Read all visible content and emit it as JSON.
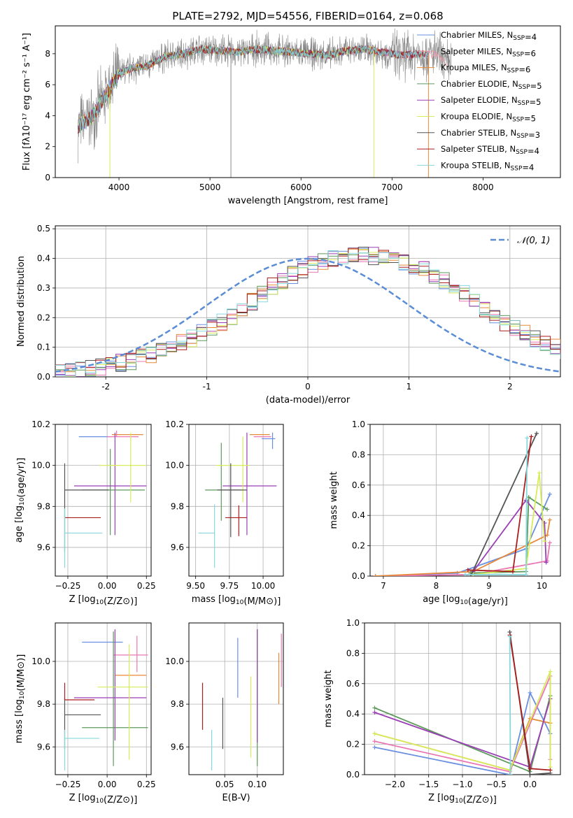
{
  "colors": [
    "#6a8fe0",
    "#e5a0ad",
    "#e8893a",
    "#5e9a5c",
    "#9b3fb5",
    "#d6ec5a",
    "#555555",
    "#aa1e1e",
    "#86d8dd",
    "#888888",
    "#ea77b4"
  ],
  "chart_data": [
    {
      "id": "spectrum",
      "type": "line",
      "title": "PLATE=2792, MJD=54556, FIBERID=0164, z=0.068",
      "xlabel": "wavelength [Angstrom, rest frame]",
      "ylabel": "Flux [fλ10⁻¹⁷ erg cm⁻² s⁻¹ A⁻¹]",
      "xlim": [
        3300,
        8850
      ],
      "ylim": [
        0,
        9.8
      ],
      "xticks": [
        4000,
        5000,
        6000,
        7000,
        8000
      ],
      "yticks": [
        0,
        2,
        4,
        6,
        8
      ],
      "grid": false,
      "legend_position": "upper-right",
      "legend": [
        "Chabrier MILES, N_SSP=4",
        "Salpeter MILES, N_SSP=6",
        "Kroupa MILES, N_SSP=6",
        "Chabrier ELODIE, N_SSP=5",
        "Salpeter ELODIE, N_SSP=5",
        "Kroupa ELODIE, N_SSP=5",
        "Chabrier STELIB, N_SSP=3",
        "Salpeter STELIB, N_SSP=4",
        "Kroupa STELIB, N_SSP=4"
      ],
      "legend_colors": [
        "#6a8fe0",
        "#e5a0ad",
        "#e8893a",
        "#5e9a5c",
        "#9b3fb5",
        "#d6ec5a",
        "#555555",
        "#aa1e1e",
        "#86d8dd"
      ],
      "continuum": {
        "x": [
          3550,
          3700,
          3850,
          4000,
          4150,
          4300,
          4500,
          4700,
          4900,
          5100,
          5300,
          5500,
          5700,
          5900,
          6100,
          6300,
          6500,
          6700,
          6900,
          7100,
          7300,
          7500,
          7600
        ],
        "y": [
          3.3,
          3.9,
          5.3,
          6.7,
          7.1,
          7.2,
          7.8,
          8.0,
          8.3,
          8.2,
          8.1,
          8.3,
          8.2,
          8.1,
          8.0,
          7.9,
          8.2,
          8.3,
          8.1,
          7.9,
          8.0,
          7.9,
          7.3
        ]
      },
      "observed_extent": [
        3550,
        7650
      ],
      "model_extents": [
        [
          3550,
          6800
        ],
        [
          3550,
          7600
        ],
        [
          3550,
          7400
        ],
        [
          3550,
          6800
        ],
        [
          3550,
          7400
        ],
        [
          3550,
          6800
        ],
        [
          3550,
          7400
        ],
        [
          3550,
          7400
        ],
        [
          3550,
          7400
        ]
      ],
      "drops": [
        {
          "x": 3900,
          "color": "#d6ec5a"
        },
        {
          "x": 6800,
          "color": "#d6ec5a"
        },
        {
          "x": 7400,
          "color": "#e8893a"
        },
        {
          "x": 5230,
          "color": "#888888"
        }
      ]
    },
    {
      "id": "residuals",
      "type": "step",
      "xlabel": "(data-model)/error",
      "ylabel": "Normed distribution",
      "xlim": [
        -2.5,
        2.5
      ],
      "ylim": [
        0,
        0.51
      ],
      "xticks": [
        -2,
        -1,
        0,
        1,
        2
      ],
      "yticks": [
        0.0,
        0.1,
        0.2,
        0.3,
        0.4,
        0.5
      ],
      "grid": true,
      "legend_position": "upper-right",
      "legend": [
        "𝒩(0, 1)"
      ],
      "bin_width": 0.1,
      "bin_start": -2.5,
      "base": [
        0.018,
        0.021,
        0.024,
        0.028,
        0.033,
        0.04,
        0.047,
        0.054,
        0.064,
        0.075,
        0.087,
        0.1,
        0.114,
        0.129,
        0.147,
        0.165,
        0.185,
        0.206,
        0.23,
        0.255,
        0.28,
        0.305,
        0.325,
        0.345,
        0.362,
        0.377,
        0.39,
        0.399,
        0.405,
        0.408,
        0.41,
        0.408,
        0.403,
        0.396,
        0.387,
        0.375,
        0.36,
        0.344,
        0.325,
        0.303,
        0.28,
        0.255,
        0.23,
        0.206,
        0.185,
        0.165,
        0.147,
        0.129,
        0.114,
        0.1,
        0.087,
        0.075,
        0.064,
        0.054,
        0.047,
        0.04,
        0.033,
        0.028,
        0.024,
        0.021
      ],
      "normal": {
        "mean": 0,
        "sigma": 1
      }
    },
    {
      "id": "age-vs-Z",
      "type": "errorbar",
      "xlabel": "Z [log10(Z/Z⊙)]",
      "ylabel": "age  [log10(age/yr)]",
      "xlim": [
        -0.33,
        0.28
      ],
      "ylim": [
        9.46,
        10.2
      ],
      "xticks": [
        -0.25,
        0.0,
        0.25
      ],
      "yticks": [
        9.6,
        9.8,
        10.0,
        10.2
      ],
      "grid": true,
      "points": [
        {
          "x": -0.08,
          "y": 10.14,
          "xerr": [
            0.1,
            0.1
          ],
          "yerr": [
            0.0,
            0.0
          ],
          "color": "#6a8fe0"
        },
        {
          "x": 0.06,
          "y": 10.14,
          "xerr": [
            0.06,
            0.14
          ],
          "yerr": [
            0.0,
            0.03
          ],
          "color": "#ea77b4"
        },
        {
          "x": 0.07,
          "y": 10.15,
          "xerr": [
            0.04,
            0.16
          ],
          "yerr": [
            0.0,
            0.0
          ],
          "color": "#e8893a"
        },
        {
          "x": 0.02,
          "y": 9.88,
          "xerr": [
            0.18,
            0.22
          ],
          "yerr": [
            0.22,
            0.2
          ],
          "color": "#5e9a5c"
        },
        {
          "x": 0.05,
          "y": 9.9,
          "xerr": [
            0.26,
            0.2
          ],
          "yerr": [
            0.24,
            0.26
          ],
          "color": "#9b3fb5"
        },
        {
          "x": 0.15,
          "y": 10.0,
          "xerr": [
            0.2,
            0.1
          ],
          "yerr": [
            0.18,
            0.16
          ],
          "color": "#d6ec5a"
        },
        {
          "x": -0.27,
          "y": 9.88,
          "xerr": [
            0.0,
            0.28
          ],
          "yerr": [
            0.3,
            0.13
          ],
          "color": "#555555"
        },
        {
          "x": -0.27,
          "y": 9.745,
          "xerr": [
            0.0,
            0.23
          ],
          "yerr": [
            0.0,
            0.0
          ],
          "color": "#aa1e1e"
        },
        {
          "x": -0.27,
          "y": 9.67,
          "xerr": [
            0.0,
            0.24
          ],
          "yerr": [
            0.17,
            0.12
          ],
          "color": "#86d8dd"
        }
      ]
    },
    {
      "id": "age-vs-mass",
      "type": "errorbar",
      "xlabel": "mass [log10(M/M⊙)]",
      "ylabel": "",
      "xlim": [
        9.45,
        10.15
      ],
      "ylim": [
        9.46,
        10.2
      ],
      "xticks": [
        9.5,
        9.75,
        10.0
      ],
      "yticks": [
        9.6,
        9.8,
        10.0,
        10.2
      ],
      "grid": true,
      "points": [
        {
          "x": 10.07,
          "y": 10.13,
          "xerr": [
            0.08,
            0.02
          ],
          "yerr": [
            0.05,
            0.03
          ],
          "color": "#6a8fe0"
        },
        {
          "x": 10.03,
          "y": 10.14,
          "xerr": [
            0.1,
            0.03
          ],
          "yerr": [
            0.0,
            0.0
          ],
          "color": "#ea77b4"
        },
        {
          "x": 9.95,
          "y": 10.15,
          "xerr": [
            0.05,
            0.1
          ],
          "yerr": [
            0.0,
            0.0
          ],
          "color": "#e8893a"
        },
        {
          "x": 9.69,
          "y": 9.88,
          "xerr": [
            0.12,
            0.15
          ],
          "yerr": [
            0.15,
            0.23
          ],
          "color": "#5e9a5c"
        },
        {
          "x": 9.88,
          "y": 9.9,
          "xerr": [
            0.18,
            0.22
          ],
          "yerr": [
            0.24,
            0.26
          ],
          "color": "#9b3fb5"
        },
        {
          "x": 9.85,
          "y": 10.0,
          "xerr": [
            0.2,
            0.05
          ],
          "yerr": [
            0.18,
            0.14
          ],
          "color": "#d6ec5a"
        },
        {
          "x": 9.76,
          "y": 9.88,
          "xerr": [
            0.1,
            0.12
          ],
          "yerr": [
            0.23,
            0.13
          ],
          "color": "#555555"
        },
        {
          "x": 9.82,
          "y": 9.745,
          "xerr": [
            0.1,
            0.06
          ],
          "yerr": [
            0.09,
            0.06
          ],
          "color": "#aa1e1e"
        },
        {
          "x": 9.64,
          "y": 9.67,
          "xerr": [
            0.12,
            0.0
          ],
          "yerr": [
            0.17,
            0.14
          ],
          "color": "#86d8dd"
        }
      ]
    },
    {
      "id": "weight-vs-age",
      "type": "line",
      "xlabel": "age  [log10(age/yr)]",
      "ylabel": "mass weight",
      "xlim": [
        6.75,
        10.35
      ],
      "ylim": [
        0,
        1
      ],
      "xticks": [
        7,
        8,
        9,
        10
      ],
      "yticks": [
        0.0,
        0.2,
        0.4,
        0.6,
        0.8,
        1.0
      ],
      "grid": true,
      "series": [
        {
          "color": "#6a8fe0",
          "x": [
            6.85,
            8.4,
            9.7,
            10.15
          ],
          "y": [
            0.0,
            0.02,
            0.18,
            0.54
          ]
        },
        {
          "color": "#ea77b4",
          "x": [
            6.85,
            8.7,
            10.1,
            10.15
          ],
          "y": [
            0.0,
            0.01,
            0.1,
            0.22
          ]
        },
        {
          "color": "#e8893a",
          "x": [
            6.85,
            8.7,
            10.1,
            10.15
          ],
          "y": [
            0.0,
            0.03,
            0.27,
            0.37
          ]
        },
        {
          "color": "#5e9a5c",
          "x": [
            8.65,
            9.7,
            9.75,
            10.1
          ],
          "y": [
            0.02,
            0.03,
            0.52,
            0.44
          ]
        },
        {
          "color": "#9b3fb5",
          "x": [
            8.7,
            9.7,
            10.05,
            10.08
          ],
          "y": [
            0.03,
            0.5,
            0.35,
            0.09
          ]
        },
        {
          "color": "#d6ec5a",
          "x": [
            8.7,
            9.7,
            9.95,
            10.05
          ],
          "y": [
            0.01,
            0.05,
            0.68,
            0.23
          ]
        },
        {
          "color": "#555555",
          "x": [
            8.65,
            9.9
          ],
          "y": [
            0.0,
            0.94
          ]
        },
        {
          "color": "#aa1e1e",
          "x": [
            8.6,
            9.45,
            9.8
          ],
          "y": [
            0.04,
            0.03,
            0.92
          ]
        },
        {
          "color": "#86d8dd",
          "x": [
            8.55,
            9.7,
            9.72
          ],
          "y": [
            0.01,
            0.01,
            0.91
          ]
        }
      ]
    },
    {
      "id": "mass-vs-Z",
      "type": "errorbar",
      "xlabel": "Z [log10(Z/Z⊙)]",
      "ylabel": "mass [log10(M/M⊙)]",
      "xlim": [
        -0.33,
        0.28
      ],
      "ylim": [
        9.47,
        10.18
      ],
      "xticks": [
        -0.25,
        0.0,
        0.25
      ],
      "yticks": [
        9.6,
        9.8,
        10.0
      ],
      "grid": true,
      "points": [
        {
          "x": -0.02,
          "y": 10.09,
          "xerr": [
            0.14,
            0.12
          ],
          "yerr": [
            0.0,
            0.0
          ],
          "color": "#6a8fe0"
        },
        {
          "x": 0.19,
          "y": 10.03,
          "xerr": [
            0.15,
            0.07
          ],
          "yerr": [
            0.08,
            0.09
          ],
          "color": "#ea77b4"
        },
        {
          "x": 0.15,
          "y": 9.935,
          "xerr": [
            0.1,
            0.1
          ],
          "yerr": [
            0.0,
            0.0
          ],
          "color": "#e8893a"
        },
        {
          "x": 0.04,
          "y": 9.69,
          "xerr": [
            0.2,
            0.22
          ],
          "yerr": [
            0.18,
            0.45
          ],
          "color": "#5e9a5c"
        },
        {
          "x": 0.05,
          "y": 9.83,
          "xerr": [
            0.26,
            0.2
          ],
          "yerr": [
            0.2,
            0.32
          ],
          "color": "#9b3fb5"
        },
        {
          "x": 0.14,
          "y": 9.88,
          "xerr": [
            0.2,
            0.12
          ],
          "yerr": [
            0.34,
            0.2
          ],
          "color": "#d6ec5a"
        },
        {
          "x": -0.27,
          "y": 9.75,
          "xerr": [
            0.0,
            0.23
          ],
          "yerr": [
            0.16,
            0.08
          ],
          "color": "#555555"
        },
        {
          "x": -0.27,
          "y": 9.82,
          "xerr": [
            0.0,
            0.19
          ],
          "yerr": [
            0.0,
            0.08
          ],
          "color": "#aa1e1e"
        },
        {
          "x": -0.27,
          "y": 9.64,
          "xerr": [
            0.0,
            0.22
          ],
          "yerr": [
            0.15,
            0.04
          ],
          "color": "#86d8dd"
        }
      ]
    },
    {
      "id": "mass-vs-EBV",
      "type": "errorbar",
      "xlabel": "E(B-V)",
      "ylabel": "",
      "xlim": [
        -0.005,
        0.14
      ],
      "ylim": [
        9.47,
        10.18
      ],
      "xticks": [
        0.05,
        0.1
      ],
      "yticks": [
        9.6,
        9.8,
        10.0
      ],
      "grid": true,
      "points": [
        {
          "x": 0.07,
          "y": 9.97,
          "xerr": [
            0.0,
            0.0
          ],
          "yerr": [
            0.14,
            0.14
          ],
          "color": "#6a8fe0"
        },
        {
          "x": 0.137,
          "y": 10.01,
          "xerr": [
            0.0,
            0.0
          ],
          "yerr": [
            0.13,
            0.12
          ],
          "color": "#ea77b4"
        },
        {
          "x": 0.133,
          "y": 9.92,
          "xerr": [
            0.0,
            0.0
          ],
          "yerr": [
            0.12,
            0.12
          ],
          "color": "#e8893a"
        },
        {
          "x": 0.1,
          "y": 9.8,
          "xerr": [
            0.0,
            0.0
          ],
          "yerr": [
            0.29,
            0.35
          ],
          "color": "#5e9a5c"
        },
        {
          "x": 0.1,
          "y": 9.88,
          "xerr": [
            0.0,
            0.0
          ],
          "yerr": [
            0.26,
            0.27
          ],
          "color": "#9b3fb5"
        },
        {
          "x": 0.09,
          "y": 9.73,
          "xerr": [
            0.0,
            0.0
          ],
          "yerr": [
            0.18,
            0.2
          ],
          "color": "#d6ec5a"
        },
        {
          "x": 0.047,
          "y": 9.71,
          "xerr": [
            0.0,
            0.0
          ],
          "yerr": [
            0.12,
            0.12
          ],
          "color": "#555555"
        },
        {
          "x": 0.016,
          "y": 9.79,
          "xerr": [
            0.0,
            0.0
          ],
          "yerr": [
            0.11,
            0.11
          ],
          "color": "#aa1e1e"
        },
        {
          "x": 0.03,
          "y": 9.58,
          "xerr": [
            0.0,
            0.0
          ],
          "yerr": [
            0.09,
            0.1
          ],
          "color": "#86d8dd"
        }
      ]
    },
    {
      "id": "weight-vs-Z",
      "type": "line",
      "xlabel": "Z [log10(Z/Z⊙)]",
      "ylabel": "mass weight",
      "xlim": [
        -2.45,
        0.45
      ],
      "ylim": [
        0,
        1
      ],
      "xticks": [
        -2.0,
        -1.5,
        -1.0,
        -0.5,
        0.0
      ],
      "xticklabels": [
        "−2.0",
        "−1.5",
        "−1.0",
        "−0.5",
        "0.0"
      ],
      "yticks": [
        0.0,
        0.2,
        0.4,
        0.6,
        0.8,
        1.0
      ],
      "grid": true,
      "series": [
        {
          "color": "#6a8fe0",
          "x": [
            -2.3,
            -0.3,
            0.0,
            0.3
          ],
          "y": [
            0.18,
            0.0,
            0.54,
            0.27
          ]
        },
        {
          "color": "#ea77b4",
          "x": [
            -2.3,
            -0.3,
            0.3,
            0.3
          ],
          "y": [
            0.22,
            0.02,
            0.65,
            0.1
          ]
        },
        {
          "color": "#e8893a",
          "x": [
            -2.3,
            -0.3,
            0.0,
            0.3
          ],
          "y": [
            0.27,
            0.03,
            0.37,
            0.34
          ]
        },
        {
          "color": "#5e9a5c",
          "x": [
            -2.3,
            0.0,
            0.3
          ],
          "y": [
            0.44,
            0.02,
            0.52
          ]
        },
        {
          "color": "#9b3fb5",
          "x": [
            -2.3,
            0.0,
            0.3
          ],
          "y": [
            0.41,
            0.05,
            0.5
          ]
        },
        {
          "color": "#d6ec5a",
          "x": [
            -2.3,
            -0.3,
            0.3,
            0.3
          ],
          "y": [
            0.27,
            0.03,
            0.68,
            0.05
          ]
        },
        {
          "color": "#555555",
          "x": [
            -0.3,
            0.0,
            0.3
          ],
          "y": [
            0.94,
            0.0,
            0.01
          ]
        },
        {
          "color": "#aa1e1e",
          "x": [
            -0.3,
            0.0,
            0.3
          ],
          "y": [
            0.92,
            0.04,
            0.03
          ]
        },
        {
          "color": "#86d8dd",
          "x": [
            -0.3,
            -0.29
          ],
          "y": [
            0.91,
            0.0
          ]
        }
      ]
    }
  ]
}
